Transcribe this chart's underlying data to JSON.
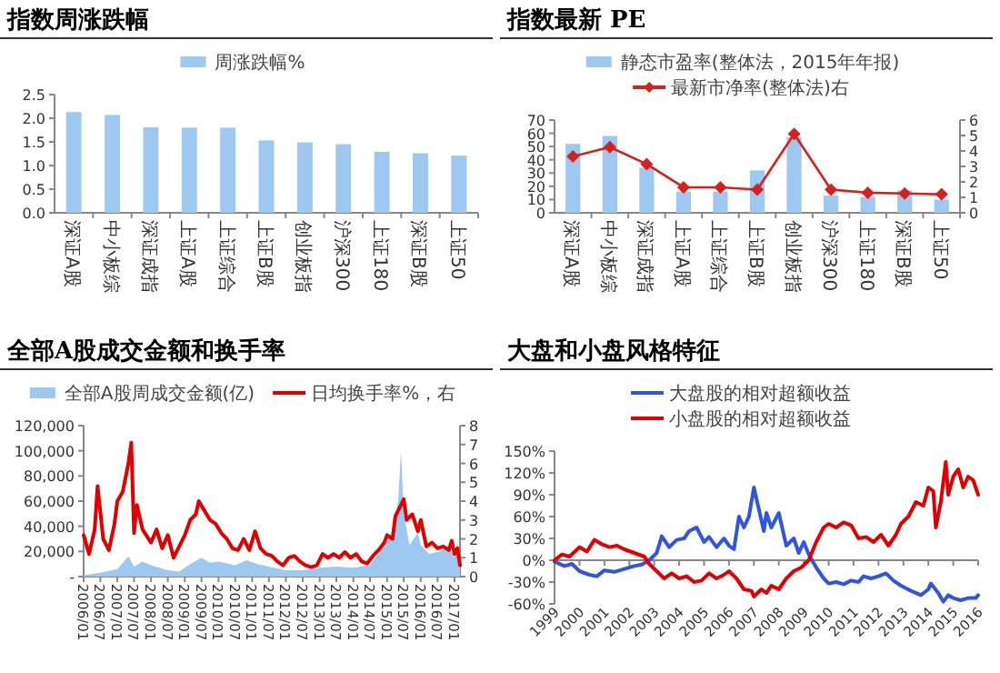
{
  "chart_data": [
    {
      "type": "bar",
      "title": "指数周涨跌幅",
      "legend": "top",
      "categories": [
        "深证A股",
        "中小板综",
        "深证成指",
        "上证A股",
        "上证综合",
        "上证B股",
        "创业板指",
        "沪深300",
        "上证180",
        "深证B股",
        "上证50"
      ],
      "series": [
        {
          "name": "周涨跌幅%",
          "color": "#9dc8f0",
          "values": [
            2.13,
            2.07,
            1.81,
            1.8,
            1.8,
            1.53,
            1.49,
            1.45,
            1.29,
            1.26,
            1.21
          ]
        }
      ],
      "ylim": [
        0,
        2.5
      ],
      "yticks": [
        {
          "value": 0,
          "label": "0.0"
        },
        {
          "value": 0.5,
          "label": "0.5"
        },
        {
          "value": 1,
          "label": "1.0"
        },
        {
          "value": 1.5,
          "label": "1.5"
        },
        {
          "value": 2,
          "label": "2.0"
        },
        {
          "value": 2.5,
          "label": "2.5"
        }
      ]
    },
    {
      "type": "bar",
      "title": "指数最新 PE",
      "legend": "top",
      "marker": "diamond",
      "categories": [
        "深证A股",
        "中小板综",
        "深证成指",
        "上证A股",
        "上证综合",
        "上证B股",
        "创业板指",
        "沪深300",
        "上证180",
        "深证B股",
        "上证50"
      ],
      "series": [
        {
          "name": "静态市盈率(整体法，2015年年报)",
          "color": "#9dc8f0",
          "values": [
            52,
            58,
            34,
            16,
            16,
            32,
            57,
            13,
            12,
            17,
            10
          ]
        },
        {
          "type": "line",
          "axis": "y2",
          "name": "最新市净率(整体法)右",
          "color": "#d62020",
          "values": [
            3.65,
            4.25,
            3.15,
            1.65,
            1.65,
            1.5,
            5.1,
            1.5,
            1.3,
            1.25,
            1.2
          ]
        }
      ],
      "ylim": [
        0,
        70
      ],
      "yticks": [
        0,
        10,
        20,
        30,
        40,
        50,
        60,
        70
      ],
      "y2lim": [
        0,
        6
      ],
      "y2ticks": [
        0,
        1,
        2,
        3,
        4,
        5,
        6
      ]
    },
    {
      "type": "area",
      "title": "全部A股成交金额和换手率",
      "legend": "top",
      "series": [
        {
          "name": "全部A股周成交金额(亿)",
          "color": "#9dc8f0",
          "x": [
            "2006-01",
            "2006-07",
            "2007-01",
            "2007-05",
            "2007-07",
            "2007-10",
            "2008-01",
            "2008-07",
            "2008-11",
            "2009-03",
            "2009-07",
            "2009-10",
            "2010-01",
            "2010-07",
            "2010-11",
            "2011-03",
            "2011-07",
            "2012-01",
            "2012-07",
            "2013-01",
            "2013-07",
            "2014-01",
            "2014-07",
            "2014-12",
            "2015-03",
            "2015-05",
            "2015-06",
            "2015-07",
            "2015-09",
            "2015-12",
            "2016-01",
            "2016-04",
            "2016-08",
            "2016-11",
            "2017-01",
            "2017-02",
            "2017-03"
          ],
          "values": [
            1000,
            3000,
            6000,
            16000,
            8000,
            12000,
            9000,
            5000,
            4000,
            10000,
            15000,
            11000,
            12000,
            9000,
            13000,
            10000,
            8000,
            5000,
            5000,
            7000,
            8000,
            7000,
            9000,
            25000,
            35000,
            60000,
            100000,
            50000,
            25000,
            35000,
            25000,
            18000,
            20000,
            25000,
            15000,
            28000,
            12000
          ]
        },
        {
          "type": "line",
          "axis": "y2",
          "name": "日均换手率%，右",
          "color": "#e00000",
          "x": [
            "2006-01",
            "2006-03",
            "2006-05",
            "2006-06",
            "2006-08",
            "2006-10",
            "2006-12",
            "2007-01",
            "2007-03",
            "2007-05",
            "2007-06",
            "2007-07",
            "2007-08",
            "2007-10",
            "2008-01",
            "2008-03",
            "2008-05",
            "2008-07",
            "2008-09",
            "2008-11",
            "2009-01",
            "2009-03",
            "2009-05",
            "2009-06",
            "2009-08",
            "2009-10",
            "2009-12",
            "2010-02",
            "2010-04",
            "2010-06",
            "2010-08",
            "2010-10",
            "2010-12",
            "2011-02",
            "2011-04",
            "2011-06",
            "2011-08",
            "2011-10",
            "2011-12",
            "2012-02",
            "2012-04",
            "2012-06",
            "2012-08",
            "2012-10",
            "2012-12",
            "2013-02",
            "2013-04",
            "2013-06",
            "2013-08",
            "2013-10",
            "2013-12",
            "2014-02",
            "2014-04",
            "2014-06",
            "2014-08",
            "2014-10",
            "2014-12",
            "2015-01",
            "2015-03",
            "2015-04",
            "2015-06",
            "2015-07",
            "2015-08",
            "2015-10",
            "2015-12",
            "2016-01",
            "2016-03",
            "2016-05",
            "2016-07",
            "2016-09",
            "2016-11",
            "2016-12",
            "2017-01",
            "2017-02",
            "2017-03"
          ],
          "values": [
            2.2,
            1.2,
            2.5,
            4.8,
            2.0,
            1.4,
            2.8,
            4.0,
            4.5,
            6.0,
            7.1,
            2.3,
            3.8,
            2.5,
            1.8,
            2.5,
            1.5,
            2.2,
            1.0,
            1.6,
            2.2,
            3.0,
            3.3,
            4.0,
            3.5,
            3.0,
            2.8,
            2.3,
            2.0,
            1.5,
            1.4,
            2.0,
            1.4,
            2.4,
            1.5,
            1.2,
            1.1,
            0.8,
            0.6,
            1.0,
            1.1,
            0.8,
            0.6,
            0.5,
            0.6,
            1.2,
            1.0,
            1.2,
            1.0,
            1.3,
            1.0,
            1.2,
            0.8,
            0.7,
            1.1,
            1.4,
            1.8,
            2.2,
            2.0,
            3.2,
            3.8,
            4.1,
            3.0,
            3.3,
            2.4,
            3.0,
            1.6,
            1.8,
            1.5,
            1.6,
            1.4,
            1.9,
            1.2,
            1.5,
            0.6
          ]
        }
      ],
      "xlim": [
        "2006-01",
        "2017-03"
      ],
      "xticks": [
        {
          "value": "2006-01",
          "label": "2006/01"
        },
        {
          "value": "2006-07",
          "label": "2006/07"
        },
        {
          "value": "2007-01",
          "label": "2007/01"
        },
        {
          "value": "2007-07",
          "label": "2007/07"
        },
        {
          "value": "2008-01",
          "label": "2008/01"
        },
        {
          "value": "2008-07",
          "label": "2008/07"
        },
        {
          "value": "2009-01",
          "label": "2009/01"
        },
        {
          "value": "2009-07",
          "label": "2009/07"
        },
        {
          "value": "2010-01",
          "label": "2010/01"
        },
        {
          "value": "2010-07",
          "label": "2010/07"
        },
        {
          "value": "2011-01",
          "label": "2011/01"
        },
        {
          "value": "2011-07",
          "label": "2011/07"
        },
        {
          "value": "2012-01",
          "label": "2012/01"
        },
        {
          "value": "2012-07",
          "label": "2012/07"
        },
        {
          "value": "2013-01",
          "label": "2013/01"
        },
        {
          "value": "2013-07",
          "label": "2013/07"
        },
        {
          "value": "2014-01",
          "label": "2014/01"
        },
        {
          "value": "2014-07",
          "label": "2014/07"
        },
        {
          "value": "2015-01",
          "label": "2015/01"
        },
        {
          "value": "2015-07",
          "label": "2015/07"
        },
        {
          "value": "2016-01",
          "label": "2016/01"
        },
        {
          "value": "2016-07",
          "label": "2016/07"
        },
        {
          "value": "2017-01",
          "label": "2017/01"
        }
      ],
      "ylim": [
        0,
        120000
      ],
      "yticks": [
        {
          "value": 0,
          "label": "-"
        },
        {
          "value": 20000,
          "label": "20,000"
        },
        {
          "value": 40000,
          "label": "40,000"
        },
        {
          "value": 60000,
          "label": "60,000"
        },
        {
          "value": 80000,
          "label": "80,000"
        },
        {
          "value": 100000,
          "label": "100,000"
        },
        {
          "value": 120000,
          "label": "120,000"
        }
      ],
      "y2lim": [
        0,
        8
      ],
      "y2ticks": [
        0,
        1,
        2,
        3,
        4,
        5,
        6,
        7,
        8
      ]
    },
    {
      "type": "line",
      "title": "大盘和小盘风格特征",
      "legend": "top",
      "series": [
        {
          "name": "大盘股的相对超额收益",
          "color": "#3355dd",
          "x": [
            1999,
            1999.4,
            1999.7,
            2000,
            2000.4,
            2000.7,
            2001,
            2001.4,
            2001.8,
            2002.2,
            2002.5,
            2002.8,
            2003.1,
            2003.3,
            2003.6,
            2003.9,
            2004.2,
            2004.4,
            2004.7,
            2005,
            2005.2,
            2005.5,
            2005.8,
            2006,
            2006.2,
            2006.4,
            2006.6,
            2006.8,
            2007,
            2007.2,
            2007.4,
            2007.5,
            2007.7,
            2008,
            2008.3,
            2008.6,
            2008.8,
            2009,
            2009.2,
            2009.5,
            2009.8,
            2010,
            2010.3,
            2010.6,
            2010.9,
            2011.2,
            2011.4,
            2011.7,
            2012,
            2012.3,
            2012.6,
            2012.9,
            2013.3,
            2013.7,
            2014,
            2014.1,
            2014.4,
            2014.6,
            2014.8,
            2015,
            2015.3,
            2015.6,
            2015.9,
            2016
          ],
          "values": [
            -2,
            -8,
            -5,
            -15,
            -20,
            -22,
            -14,
            -16,
            -12,
            -8,
            -6,
            0,
            10,
            33,
            18,
            28,
            30,
            40,
            45,
            25,
            32,
            18,
            30,
            20,
            15,
            60,
            45,
            60,
            100,
            70,
            40,
            65,
            45,
            65,
            20,
            30,
            10,
            25,
            8,
            -10,
            -25,
            -32,
            -30,
            -33,
            -28,
            -30,
            -22,
            -25,
            -22,
            -18,
            -28,
            -35,
            -42,
            -48,
            -40,
            -32,
            -45,
            -57,
            -48,
            -52,
            -55,
            -52,
            -52,
            -48
          ]
        },
        {
          "name": "小盘股的相对超额收益",
          "color": "#e00000",
          "x": [
            1999,
            1999.3,
            1999.6,
            2000,
            2000.3,
            2000.6,
            2000.9,
            2001.2,
            2001.5,
            2001.8,
            2002.2,
            2002.6,
            2002.8,
            2003.1,
            2003.4,
            2003.7,
            2004,
            2004.3,
            2004.6,
            2004.9,
            2005.2,
            2005.5,
            2005.8,
            2006,
            2006.3,
            2006.6,
            2006.9,
            2007,
            2007.3,
            2007.5,
            2007.7,
            2008,
            2008.3,
            2008.6,
            2008.9,
            2009.2,
            2009.5,
            2009.8,
            2010,
            2010.3,
            2010.6,
            2010.9,
            2011.2,
            2011.5,
            2011.8,
            2012.1,
            2012.4,
            2012.7,
            2012.9,
            2013.2,
            2013.5,
            2013.8,
            2014,
            2014.2,
            2014.3,
            2014.5,
            2014.7,
            2014.8,
            2015,
            2015.2,
            2015.4,
            2015.6,
            2015.8,
            2016
          ],
          "values": [
            0,
            8,
            5,
            18,
            12,
            28,
            22,
            18,
            20,
            15,
            10,
            5,
            -5,
            -15,
            -25,
            -18,
            -25,
            -22,
            -30,
            -28,
            -18,
            -25,
            -20,
            -15,
            -25,
            -40,
            -42,
            -50,
            -40,
            -45,
            -35,
            -40,
            -25,
            -15,
            -10,
            0,
            25,
            45,
            50,
            45,
            52,
            48,
            30,
            32,
            25,
            35,
            20,
            35,
            50,
            60,
            80,
            75,
            100,
            95,
            45,
            80,
            135,
            90,
            115,
            125,
            100,
            115,
            110,
            90
          ]
        }
      ],
      "xlim": [
        1999,
        2016
      ],
      "xticks": [
        1999,
        2000,
        2001,
        2002,
        2003,
        2004,
        2005,
        2006,
        2007,
        2008,
        2009,
        2010,
        2011,
        2012,
        2013,
        2014,
        2015,
        2016
      ],
      "ylim": [
        -60,
        150
      ],
      "yticks": [
        {
          "value": -60,
          "label": "-60%"
        },
        {
          "value": -30,
          "label": "-30%"
        },
        {
          "value": 0,
          "label": "0%"
        },
        {
          "value": 30,
          "label": "30%"
        },
        {
          "value": 60,
          "label": "60%"
        },
        {
          "value": 90,
          "label": "90%"
        },
        {
          "value": 120,
          "label": "120%"
        },
        {
          "value": 150,
          "label": "150%"
        }
      ]
    }
  ]
}
